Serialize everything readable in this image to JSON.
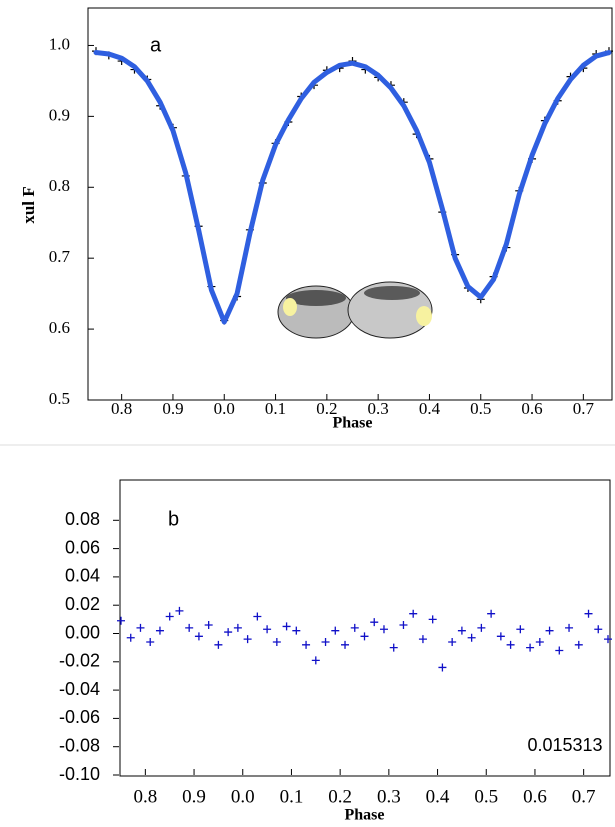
{
  "chart_data": [
    {
      "type": "line",
      "xlabel": "Phase",
      "ylabel": "xul F",
      "annotation": "a",
      "x": [
        -0.25,
        -0.225,
        -0.2,
        -0.175,
        -0.15,
        -0.125,
        -0.1,
        -0.075,
        -0.05,
        -0.025,
        0,
        0.025,
        0.05,
        0.075,
        0.1,
        0.125,
        0.15,
        0.175,
        0.2,
        0.225,
        0.25,
        0.275,
        0.3,
        0.325,
        0.35,
        0.375,
        0.4,
        0.425,
        0.45,
        0.475,
        0.5,
        0.525,
        0.55,
        0.575,
        0.6,
        0.625,
        0.65,
        0.675,
        0.7,
        0.725,
        0.75
      ],
      "series": [
        {
          "color": "#000000",
          "marker": "plus",
          "values": [
            0.992,
            0.986,
            0.978,
            0.966,
            0.952,
            0.915,
            0.884,
            0.816,
            0.745,
            0.66,
            0.612,
            0.646,
            0.74,
            0.806,
            0.862,
            0.892,
            0.928,
            0.944,
            0.965,
            0.968,
            0.978,
            0.966,
            0.955,
            0.944,
            0.92,
            0.875,
            0.84,
            0.765,
            0.705,
            0.658,
            0.642,
            0.674,
            0.715,
            0.795,
            0.84,
            0.894,
            0.922,
            0.956,
            0.968,
            0.988,
            0.992
          ]
        },
        {
          "color": "#2f5fe0",
          "values": [
            0.99,
            0.988,
            0.982,
            0.97,
            0.95,
            0.92,
            0.88,
            0.82,
            0.74,
            0.655,
            0.61,
            0.65,
            0.735,
            0.81,
            0.86,
            0.895,
            0.925,
            0.948,
            0.962,
            0.972,
            0.975,
            0.97,
            0.958,
            0.94,
            0.915,
            0.88,
            0.835,
            0.77,
            0.7,
            0.66,
            0.645,
            0.67,
            0.72,
            0.79,
            0.845,
            0.89,
            0.925,
            0.952,
            0.972,
            0.985,
            0.99
          ]
        }
      ],
      "xlim": [
        -0.25,
        0.75
      ],
      "xticks": [
        {
          "value": -0.2,
          "label": "0.8"
        },
        {
          "value": -0.1,
          "label": "0.9"
        },
        {
          "value": 0,
          "label": "0.0"
        },
        0.1,
        0.2,
        0.3,
        0.4,
        0.5,
        0.6,
        0.7
      ],
      "ylim": [
        0.5,
        1.05
      ],
      "yticks": [
        0.5,
        0.6,
        0.7,
        0.8,
        0.9,
        {
          "value": 1,
          "label": "1.0"
        }
      ]
    },
    {
      "type": "scatter",
      "xlabel": "Phase",
      "annotation": "b",
      "note": "0.015313",
      "color": "#1010c8",
      "x": [
        -0.25,
        -0.23,
        -0.21,
        -0.19,
        -0.17,
        -0.15,
        -0.13,
        -0.11,
        -0.09,
        -0.07,
        -0.05,
        -0.03,
        -0.01,
        0.01,
        0.03,
        0.05,
        0.07,
        0.09,
        0.11,
        0.13,
        0.15,
        0.17,
        0.19,
        0.21,
        0.23,
        0.25,
        0.27,
        0.29,
        0.31,
        0.33,
        0.35,
        0.37,
        0.39,
        0.41,
        0.43,
        0.45,
        0.47,
        0.49,
        0.51,
        0.53,
        0.55,
        0.57,
        0.59,
        0.61,
        0.63,
        0.65,
        0.67,
        0.69,
        0.71,
        0.73,
        0.75
      ],
      "values": [
        0.009,
        -0.003,
        0.004,
        -0.006,
        0.002,
        0.012,
        0.016,
        0.004,
        -0.002,
        0.006,
        -0.008,
        0.001,
        0.004,
        -0.004,
        0.012,
        0.003,
        -0.006,
        0.005,
        0.002,
        -0.008,
        -0.019,
        -0.006,
        0.002,
        -0.008,
        0.004,
        -0.002,
        0.008,
        0.003,
        -0.01,
        0.006,
        0.014,
        -0.004,
        0.01,
        -0.024,
        -0.006,
        0.002,
        -0.003,
        0.004,
        0.014,
        -0.002,
        -0.008,
        0.003,
        -0.01,
        -0.006,
        0.002,
        -0.012,
        0.004,
        -0.008,
        0.014,
        0.003,
        -0.004
      ],
      "xlim": [
        -0.25,
        0.75
      ],
      "xticks": [
        {
          "value": -0.2,
          "label": "0.8"
        },
        {
          "value": -0.1,
          "label": "0.9"
        },
        {
          "value": 0,
          "label": "0.0"
        },
        0.1,
        0.2,
        0.3,
        0.4,
        0.5,
        0.6,
        0.7
      ],
      "ylim": [
        -0.1,
        0.1
      ],
      "yticks": [
        {
          "value": -0.1,
          "label": "-0.10"
        },
        -0.08,
        -0.06,
        -0.04,
        -0.02,
        {
          "value": 0,
          "label": "0.00"
        },
        0.02,
        0.04,
        0.06,
        0.08
      ]
    }
  ]
}
